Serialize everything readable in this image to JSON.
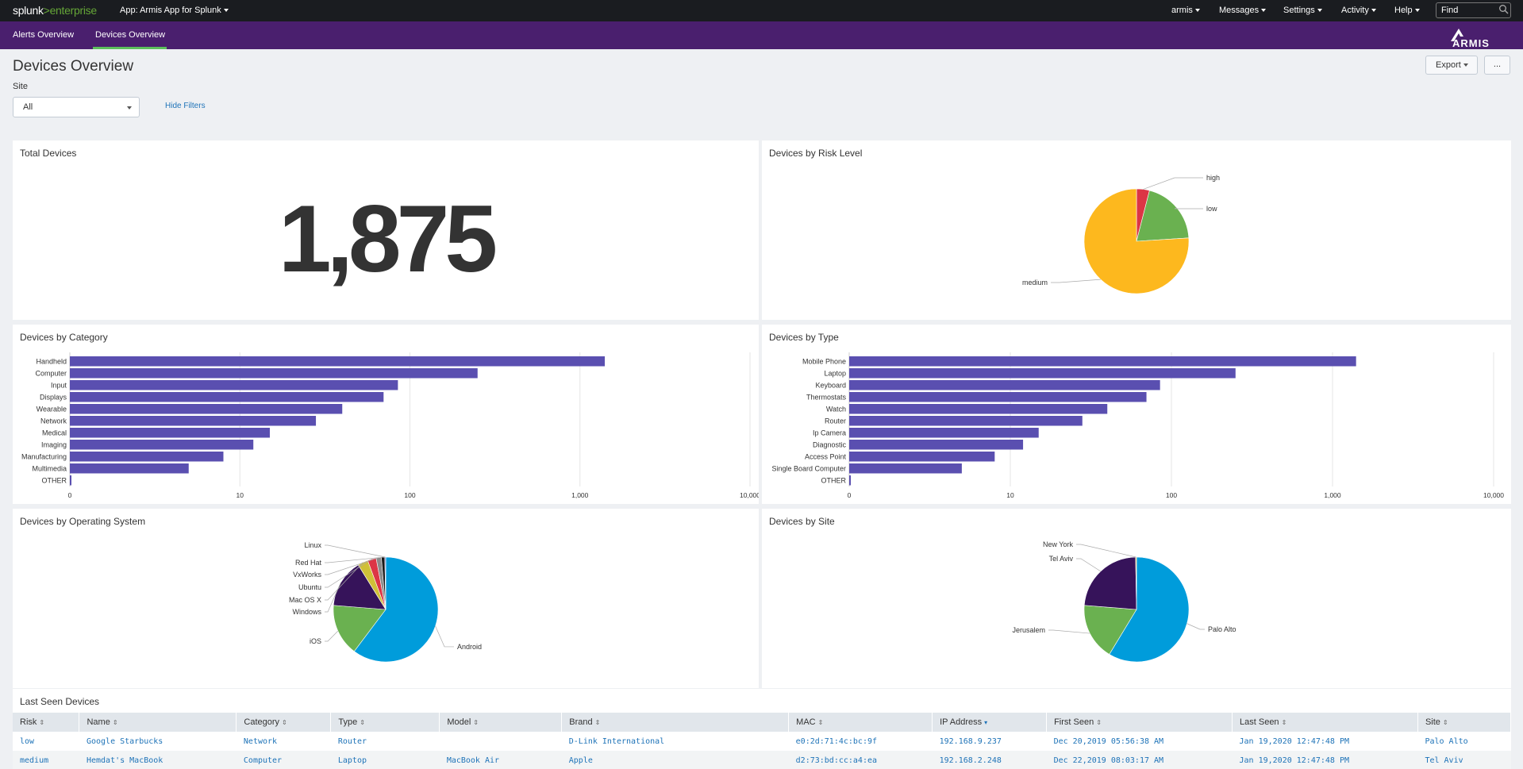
{
  "topbar": {
    "logo_splunk": "splunk",
    "logo_gt": ">",
    "logo_enterprise": "enterprise",
    "app_label": "App: Armis App for Splunk",
    "menus": [
      {
        "label": "armis",
        "x": 1476
      },
      {
        "label": "Messages",
        "x": 1536
      },
      {
        "label": "Settings",
        "x": 1617
      },
      {
        "label": "Activity",
        "x": 1724
      },
      {
        "label": "Help",
        "x": 1757
      }
    ],
    "find_placeholder": "Find"
  },
  "nav": {
    "tabs": [
      "Alerts Overview",
      "Devices Overview"
    ],
    "brand": "ARMIS"
  },
  "page": {
    "title": "Devices Overview",
    "export_label": "Export",
    "more_label": "...",
    "filter_label": "Site",
    "filter_value": "All",
    "hide_filters": "Hide Filters"
  },
  "panels": {
    "total_devices": {
      "title": "Total Devices",
      "value": "1,875"
    },
    "risk": {
      "title": "Devices by Risk Level"
    },
    "category": {
      "title": "Devices by Category"
    },
    "type": {
      "title": "Devices by Type"
    },
    "os": {
      "title": "Devices by Operating System"
    },
    "site": {
      "title": "Devices by Site"
    },
    "last_seen": {
      "title": "Last Seen Devices"
    }
  },
  "chart_data": [
    {
      "id": "risk",
      "type": "pie",
      "title": "Devices by Risk Level",
      "labels": [
        "high",
        "low",
        "medium"
      ],
      "values": [
        75,
        375,
        1425
      ],
      "colors": [
        "#dc3545",
        "#6ab150",
        "#fdb81e"
      ]
    },
    {
      "id": "category",
      "type": "bar",
      "orientation": "horizontal",
      "x_scale": "log",
      "xlim": [
        1,
        10000
      ],
      "x_ticks": [
        "0",
        "10",
        "100",
        "1,000",
        "10,000"
      ],
      "categories": [
        "Handheld",
        "Computer",
        "Input",
        "Displays",
        "Wearable",
        "Network",
        "Medical",
        "Imaging",
        "Manufacturing",
        "Multimedia",
        "OTHER"
      ],
      "values": [
        1400,
        250,
        85,
        70,
        40,
        28,
        15,
        12,
        8,
        5,
        1
      ],
      "color": "#5a4fb0"
    },
    {
      "id": "type",
      "type": "bar",
      "orientation": "horizontal",
      "x_scale": "log",
      "xlim": [
        1,
        10000
      ],
      "x_ticks": [
        "0",
        "10",
        "100",
        "1,000",
        "10,000"
      ],
      "categories": [
        "Mobile Phone",
        "Laptop",
        "Keyboard",
        "Thermostats",
        "Watch",
        "Router",
        "Ip Camera",
        "Diagnostic",
        "Access Point",
        "Single Board Computer",
        "OTHER"
      ],
      "values": [
        1400,
        250,
        85,
        70,
        40,
        28,
        15,
        12,
        8,
        5,
        1
      ],
      "color": "#5a4fb0"
    },
    {
      "id": "os",
      "type": "pie",
      "title": "Devices by Operating System",
      "labels": [
        "Android",
        "iOS",
        "Windows",
        "Mac OS X",
        "Ubuntu",
        "VxWorks",
        "Red Hat",
        "Linux"
      ],
      "values": [
        1130,
        300,
        280,
        60,
        50,
        30,
        20,
        5
      ],
      "colors": [
        "#009cdb",
        "#6ab150",
        "#36135a",
        "#d0c038",
        "#dc3545",
        "#8a8a8a",
        "#1a1a1a",
        "#5a4fb0"
      ]
    },
    {
      "id": "site",
      "type": "pie",
      "title": "Devices by Site",
      "labels": [
        "Palo Alto",
        "Jerusalem",
        "Tel Aviv",
        "New York"
      ],
      "values": [
        1100,
        330,
        440,
        5
      ],
      "colors": [
        "#009cdb",
        "#6ab150",
        "#36135a",
        "#fdb81e"
      ]
    }
  ],
  "table": {
    "columns": [
      {
        "label": "Risk",
        "sort": "⇕",
        "active": false
      },
      {
        "label": "Name",
        "sort": "⇕",
        "active": false
      },
      {
        "label": "Category",
        "sort": "⇕",
        "active": false
      },
      {
        "label": "Type",
        "sort": "⇕",
        "active": false
      },
      {
        "label": "Model",
        "sort": "⇕",
        "active": false
      },
      {
        "label": "Brand",
        "sort": "⇕",
        "active": false
      },
      {
        "label": "MAC",
        "sort": "⇕",
        "active": false
      },
      {
        "label": "IP Address",
        "sort": "▾",
        "active": true
      },
      {
        "label": "First Seen",
        "sort": "⇕",
        "active": false
      },
      {
        "label": "Last Seen",
        "sort": "⇕",
        "active": false
      },
      {
        "label": "Site",
        "sort": "⇕",
        "active": false
      }
    ],
    "rows": [
      [
        "low",
        "Google Starbucks",
        "Network",
        "Router",
        "",
        "D-Link International",
        "e0:2d:71:4c:bc:9f",
        "192.168.9.237",
        "Dec 20,2019 05:56:38 AM",
        "Jan 19,2020 12:47:48 PM",
        "Palo Alto"
      ],
      [
        "medium",
        "Hemdat's MacBook",
        "Computer",
        "Laptop",
        "MacBook Air",
        "Apple",
        "d2:73:bd:cc:a4:ea",
        "192.168.2.248",
        "Dec 22,2019 08:03:17 AM",
        "Jan 19,2020 12:47:48 PM",
        "Tel Aviv"
      ]
    ]
  }
}
